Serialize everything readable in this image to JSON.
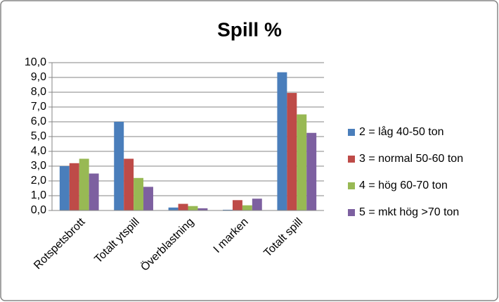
{
  "chart_data": {
    "type": "bar",
    "title": "Spill %",
    "categories": [
      "Rotspetsbrott",
      "Totalt ytspill",
      "Överblastning",
      "I marken",
      "Totalt spill"
    ],
    "series": [
      {
        "name": "2 = låg 40-50 ton",
        "color": "#4a7ebb",
        "values": [
          3.0,
          6.0,
          0.2,
          0.05,
          9.35
        ]
      },
      {
        "name": "3 = normal 50-60 ton",
        "color": "#be4b48",
        "values": [
          3.2,
          3.5,
          0.45,
          0.7,
          7.95
        ]
      },
      {
        "name": "4 = hög 60-70 ton",
        "color": "#98b954",
        "values": [
          3.5,
          2.2,
          0.3,
          0.35,
          6.5
        ]
      },
      {
        "name": "5 = mkt hög >70 ton",
        "color": "#7d60a0",
        "values": [
          2.5,
          1.6,
          0.15,
          0.8,
          5.25
        ]
      }
    ],
    "ylim": [
      0,
      10
    ],
    "yticks": [
      {
        "value": 0,
        "label": "0,0"
      },
      {
        "value": 1,
        "label": "1,0"
      },
      {
        "value": 2,
        "label": "2,0"
      },
      {
        "value": 3,
        "label": "3,0"
      },
      {
        "value": 4,
        "label": "4,0"
      },
      {
        "value": 5,
        "label": "5,0"
      },
      {
        "value": 6,
        "label": "6,0"
      },
      {
        "value": 7,
        "label": "7,0"
      },
      {
        "value": 8,
        "label": "8,0"
      },
      {
        "value": 9,
        "label": "9,0"
      },
      {
        "value": 10,
        "label": "10,0"
      }
    ],
    "grid": true,
    "legend": "right"
  }
}
